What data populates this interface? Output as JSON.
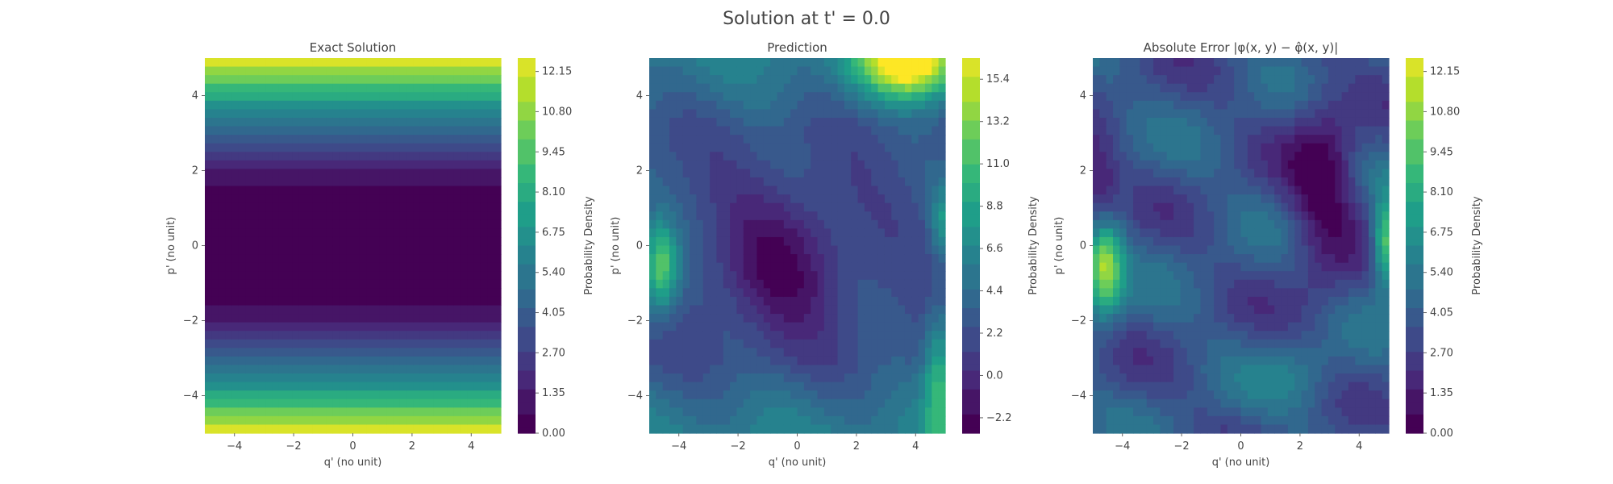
{
  "suptitle": "Solution at t' = 0.0",
  "chart_data": [
    {
      "type": "heatmap",
      "title": "Exact Solution",
      "xlabel": "q' (no unit)",
      "ylabel": "p' (no unit)",
      "xlim": [
        -5,
        5
      ],
      "ylim": [
        -5,
        5
      ],
      "xticks": [
        "−4",
        "−2",
        "0",
        "2",
        "4"
      ],
      "yticks": [
        "−4",
        "−2",
        "0",
        "2",
        "4"
      ],
      "colormap": "viridis",
      "colorbar": {
        "label": "Probability Density",
        "min": 0.0,
        "max": 12.6,
        "ticks": [
          "0.00",
          "1.35",
          "2.70",
          "4.05",
          "5.40",
          "6.75",
          "8.10",
          "9.45",
          "10.80",
          "12.15"
        ]
      }
    },
    {
      "type": "heatmap",
      "title": "Prediction",
      "xlabel": "q' (no unit)",
      "ylabel": "p' (no unit)",
      "xlim": [
        -5,
        5
      ],
      "ylim": [
        -5,
        5
      ],
      "xticks": [
        "−4",
        "−2",
        "0",
        "2",
        "4"
      ],
      "yticks": [
        "−4",
        "−2",
        "0",
        "2",
        "4"
      ],
      "colormap": "viridis",
      "colorbar": {
        "label": "Probability Density",
        "min": -3.0,
        "max": 16.5,
        "ticks": [
          "−2.2",
          "0.0",
          "2.2",
          "4.4",
          "6.6",
          "8.8",
          "11.0",
          "13.2",
          "15.4"
        ]
      }
    },
    {
      "type": "heatmap",
      "title": "Absolute Error |φ(x, y) − φ̂(x, y)|",
      "xlabel": "q' (no unit)",
      "ylabel": "p' (no unit)",
      "xlim": [
        -5,
        5
      ],
      "ylim": [
        -5,
        5
      ],
      "xticks": [
        "−4",
        "−2",
        "0",
        "2",
        "4"
      ],
      "yticks": [
        "−4",
        "−2",
        "0",
        "2",
        "4"
      ],
      "colormap": "viridis",
      "colorbar": {
        "label": "Probability Density",
        "min": 0.0,
        "max": 12.6,
        "ticks": [
          "0.00",
          "1.35",
          "2.70",
          "4.05",
          "5.40",
          "6.75",
          "8.10",
          "9.45",
          "10.80",
          "12.15"
        ]
      }
    }
  ]
}
